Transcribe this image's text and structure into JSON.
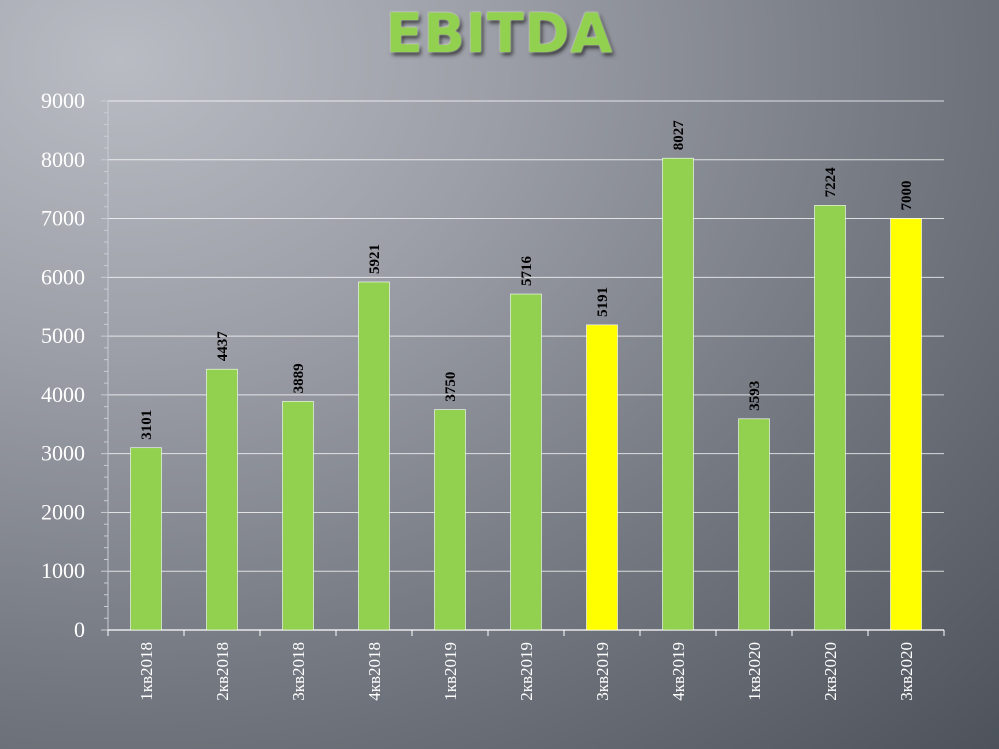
{
  "chart_data": {
    "type": "bar",
    "title": "EBITDA",
    "xlabel": "",
    "ylabel": "",
    "categories": [
      "1кв2018",
      "2кв2018",
      "3кв2018",
      "4кв2018",
      "1кв2019",
      "2кв2019",
      "3кв2019",
      "4кв2019",
      "1кв2020",
      "2кв2020",
      "3кв2020"
    ],
    "values": [
      3101,
      4437,
      3889,
      5921,
      3750,
      5716,
      5191,
      8027,
      3593,
      7224,
      7000
    ],
    "bar_colors": [
      "#92d050",
      "#92d050",
      "#92d050",
      "#92d050",
      "#92d050",
      "#92d050",
      "#ffff00",
      "#92d050",
      "#92d050",
      "#92d050",
      "#ffff00"
    ],
    "ylim": [
      0,
      9000
    ],
    "yticks": [
      0,
      1000,
      2000,
      3000,
      4000,
      5000,
      6000,
      7000,
      8000,
      9000
    ],
    "grid": true,
    "legend": "none",
    "data_labels": true
  },
  "colors": {
    "title": "#92d050",
    "primary_bar": "#92d050",
    "highlight_bar": "#ffff00",
    "gridline": "#ffffff",
    "axis_text": "#ffffff",
    "data_label": "#000000"
  }
}
